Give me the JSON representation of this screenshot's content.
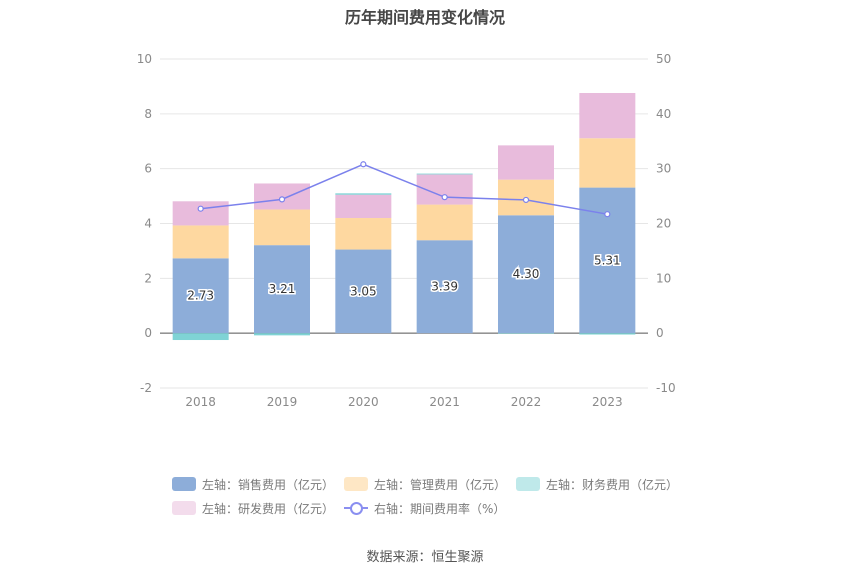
{
  "title": "历年期间费用变化情况",
  "source": "数据来源：恒生聚源",
  "colors": {
    "sales": "#8dadd9",
    "admin": "#fed8a0",
    "finance": "#7fd3d5",
    "rnd": "#e8bbdc",
    "rate": "#7b81ec"
  },
  "chart_data": {
    "type": "bar",
    "stacked": true,
    "categories": [
      "2018",
      "2019",
      "2020",
      "2021",
      "2022",
      "2023"
    ],
    "series": [
      {
        "name": "左轴：销售费用（亿元）",
        "key": "sales",
        "axis": "left",
        "values": [
          2.73,
          3.21,
          3.05,
          3.39,
          4.3,
          5.31
        ],
        "labels": [
          "2.73",
          "3.21",
          "3.05",
          "3.39",
          "4.30",
          "5.31"
        ]
      },
      {
        "name": "左轴：管理费用（亿元）",
        "key": "admin",
        "axis": "left",
        "values": [
          1.2,
          1.3,
          1.15,
          1.3,
          1.3,
          1.8
        ]
      },
      {
        "name": "左轴：财务费用（亿元）",
        "key": "finance",
        "axis": "left",
        "values": [
          -0.25,
          -0.08,
          0.05,
          0.03,
          -0.02,
          -0.05
        ]
      },
      {
        "name": "左轴：研发费用（亿元）",
        "key": "rnd",
        "axis": "left",
        "values": [
          0.88,
          0.95,
          0.85,
          1.1,
          1.25,
          1.65
        ]
      },
      {
        "name": "右轴：期间费用率（%）",
        "key": "rate",
        "axis": "right",
        "type": "line",
        "values": [
          22.7,
          24.4,
          30.8,
          24.8,
          24.3,
          21.7
        ]
      }
    ],
    "left_axis": {
      "ticks": [
        "10",
        "8",
        "6",
        "4",
        "2",
        "0",
        "-2"
      ],
      "ylim": [
        -2,
        10
      ]
    },
    "right_axis": {
      "ticks": [
        "50",
        "40",
        "30",
        "20",
        "10",
        "0",
        "-10"
      ],
      "ylim": [
        -10,
        50
      ]
    },
    "grid": true,
    "legend_position": "bottom"
  }
}
